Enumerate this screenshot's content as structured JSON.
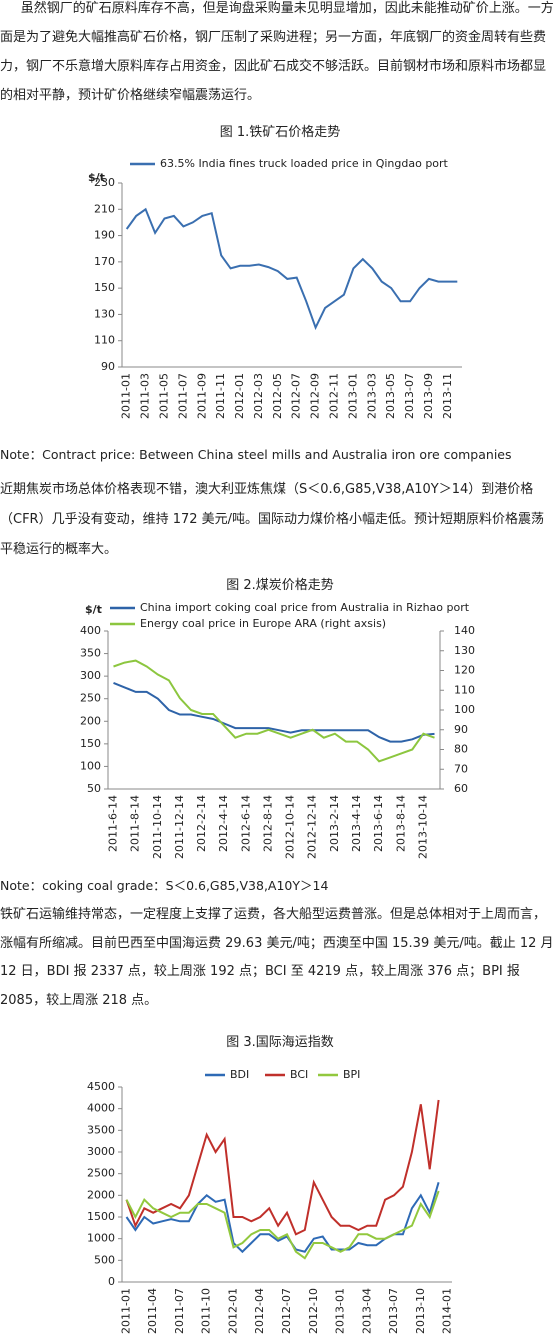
{
  "document": {
    "paragraphs": [
      "虽然钢厂的矿石原料库存不高，但是询盘采购量未见明显增加，因此未能推动矿价上涨。一方面是为了避免大幅推高矿石价格，钢厂压制了采购进程；另一方面，年底钢厂的资金周转有些费力，钢厂不乐意增大原料库存占用资金，因此矿石成交不够活跃。目前钢材市场和原料市场都显的相对平静，预计矿价格继续窄幅震荡运行。",
      "近期焦炭市场总体价格表现不错，澳大利亚炼焦煤（S＜0.6,G85,V38,A10Y＞14）到港价格（CFR）几乎没有变动，维持 172 美元/吨。国际动力煤价格小幅走低。预计短期原料价格震荡平稳运行的概率大。",
      "铁矿石运输维持常态，一定程度上支撑了运费，各大船型运费普涨。但是总体相对于上周而言，涨幅有所缩减。目前巴西至中国海运费 29.63 美元/吨；西澳至中国 15.39 美元/吨。截止 12 月 12 日，BDI 报 2337 点，较上周涨 192 点；BCI 至 4219 点，较上周涨 376 点；BPI 报 2085，较上周涨 218 点。"
    ],
    "figure_captions": [
      "图 1.铁矿石价格走势",
      "图 2.煤炭价格走势",
      "图 3.国际海运指数"
    ],
    "notes": [
      "Note：Contract price: Between China steel mills and Australia iron ore companies",
      "Note：coking coal grade：S＜0.6,G85,V38,A10Y＞14"
    ]
  },
  "chart_data": [
    {
      "type": "line",
      "ylabel": "$/t",
      "legend": "top",
      "categories": [
        "2011-01",
        null,
        "2011-03",
        null,
        "2011-05",
        null,
        "2011-07",
        null,
        "2011-09",
        null,
        "2011-11",
        null,
        "2012-01",
        null,
        "2012-03",
        null,
        "2012-05",
        null,
        "2012-07",
        null,
        "2012-09",
        null,
        "2012-11",
        null,
        "2013-01",
        null,
        "2013-03",
        null,
        "2013-05",
        null,
        "2013-07",
        null,
        "2013-09",
        null,
        "2013-11",
        null
      ],
      "series": [
        {
          "name": "63.5% India fines truck loaded price in Qingdao port",
          "color": "#3a6fb0",
          "values": [
            195,
            205,
            210,
            192,
            203,
            205,
            197,
            200,
            205,
            207,
            175,
            165,
            167,
            167,
            168,
            166,
            163,
            157,
            158,
            140,
            120,
            135,
            140,
            145,
            165,
            172,
            165,
            155,
            150,
            140,
            140,
            150,
            157,
            155,
            155,
            155
          ]
        }
      ],
      "ylim": [
        90,
        230
      ],
      "yticks": [
        90,
        110,
        130,
        150,
        170,
        190,
        210,
        230
      ]
    },
    {
      "type": "line",
      "ylabel": "$/t",
      "legend": "top",
      "categories": [
        "2011-6-14",
        null,
        "2011-8-14",
        null,
        "2011-10-14",
        null,
        "2011-12-14",
        null,
        "2012-2-14",
        null,
        "2012-4-14",
        null,
        "2012-6-14",
        null,
        "2012-8-14",
        null,
        "2012-10-14",
        null,
        "2012-12-14",
        null,
        "2013-2-14",
        null,
        "2013-4-14",
        null,
        "2013-6-14",
        null,
        "2013-8-14",
        null,
        "2013-10-14",
        null
      ],
      "series": [
        {
          "name": "China  import  coking  coal price from Australia in Rizhao port",
          "color": "#2e63a8",
          "values": [
            285,
            275,
            265,
            265,
            250,
            225,
            215,
            215,
            210,
            205,
            195,
            185,
            185,
            185,
            185,
            180,
            175,
            180,
            180,
            180,
            180,
            180,
            180,
            180,
            165,
            155,
            155,
            160,
            170,
            172
          ]
        },
        {
          "name": "Energy coal price in Europe ARA (right axsis)",
          "color": "#8cc63f",
          "axis": "y2",
          "values": [
            122,
            124,
            125,
            122,
            118,
            115,
            106,
            100,
            98,
            98,
            92,
            86,
            88,
            88,
            90,
            88,
            86,
            88,
            90,
            86,
            88,
            84,
            84,
            80,
            74,
            76,
            78,
            80,
            88,
            86
          ]
        }
      ],
      "ylim": [
        50,
        400
      ],
      "yticks": [
        50,
        100,
        150,
        200,
        250,
        300,
        350,
        400
      ],
      "y2lim": [
        60,
        140
      ],
      "y2ticks": [
        60,
        70,
        80,
        90,
        100,
        110,
        120,
        130,
        140
      ]
    },
    {
      "type": "line",
      "legend": "top",
      "categories": [
        "2011-01",
        null,
        null,
        "2011-04",
        null,
        null,
        "2011-07",
        null,
        null,
        "2011-10",
        null,
        null,
        "2012-01",
        null,
        null,
        "2012-04",
        null,
        null,
        "2012-07",
        null,
        null,
        "2012-10",
        null,
        null,
        "2013-01",
        null,
        null,
        "2013-04",
        null,
        null,
        "2013-07",
        null,
        null,
        "2013-10",
        null,
        null,
        "2014-01"
      ],
      "series": [
        {
          "name": "BDI",
          "color": "#2e6ab5",
          "values": [
            1500,
            1200,
            1500,
            1350,
            1400,
            1450,
            1400,
            1400,
            1800,
            2000,
            1850,
            1900,
            900,
            700,
            900,
            1100,
            1100,
            950,
            1050,
            750,
            700,
            1000,
            1050,
            750,
            750,
            750,
            900,
            850,
            850,
            1000,
            1100,
            1100,
            1700,
            2000,
            1600,
            2300,
            null
          ]
        },
        {
          "name": "BCI",
          "color": "#c0302b",
          "values": [
            1900,
            1300,
            1700,
            1600,
            1700,
            1800,
            1700,
            2000,
            2700,
            3400,
            3000,
            3300,
            1500,
            1500,
            1400,
            1500,
            1700,
            1300,
            1600,
            1100,
            1200,
            2300,
            1900,
            1500,
            1300,
            1300,
            1200,
            1300,
            1300,
            1900,
            2000,
            2200,
            3000,
            4100,
            2600,
            4200,
            null
          ]
        },
        {
          "name": "BPI",
          "color": "#92c83e",
          "values": [
            1900,
            1500,
            1900,
            1700,
            1600,
            1500,
            1600,
            1600,
            1800,
            1800,
            1700,
            1600,
            800,
            900,
            1100,
            1200,
            1200,
            1000,
            1100,
            700,
            550,
            900,
            900,
            800,
            700,
            800,
            1100,
            1100,
            1000,
            1000,
            1100,
            1200,
            1300,
            1800,
            1500,
            2100,
            null
          ]
        }
      ],
      "ylim": [
        0,
        4500
      ],
      "yticks": [
        0,
        500,
        1000,
        1500,
        2000,
        2500,
        3000,
        3500,
        4000,
        4500
      ]
    }
  ]
}
